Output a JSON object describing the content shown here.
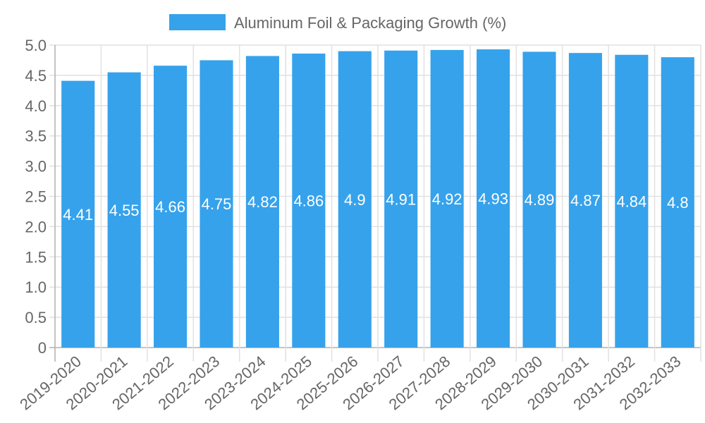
{
  "chart_data": {
    "type": "bar",
    "title": "",
    "legend": {
      "label": "Aluminum Foil & Packaging Growth (%)",
      "placement": "top-center"
    },
    "categories": [
      "2019-2020",
      "2020-2021",
      "2021-2022",
      "2022-2023",
      "2023-2024",
      "2024-2025",
      "2025-2026",
      "2026-2027",
      "2027-2028",
      "2028-2029",
      "2029-2030",
      "2030-2031",
      "2031-2032",
      "2032-2033"
    ],
    "values": [
      4.41,
      4.55,
      4.66,
      4.75,
      4.82,
      4.86,
      4.9,
      4.91,
      4.92,
      4.93,
      4.89,
      4.87,
      4.84,
      4.8
    ],
    "data_labels": [
      "4.41",
      "4.55",
      "4.66",
      "4.75",
      "4.82",
      "4.86",
      "4.9",
      "4.91",
      "4.92",
      "4.93",
      "4.89",
      "4.87",
      "4.84",
      "4.8"
    ],
    "ylim": [
      0,
      5
    ],
    "yticks": [
      "0",
      "0.5",
      "1.0",
      "1.5",
      "2.0",
      "2.5",
      "3.0",
      "3.5",
      "4.0",
      "4.5",
      "5.0"
    ],
    "ytick_values": [
      0,
      0.5,
      1,
      1.5,
      2,
      2.5,
      3,
      3.5,
      4,
      4.5,
      5
    ],
    "xlabel": "",
    "ylabel": "",
    "grid": true,
    "colors": {
      "bar": "#36a2eb",
      "grid": "#e1e1e1",
      "axis": "#b0b0b0",
      "text": "#666666",
      "label": "#ffffff"
    }
  }
}
